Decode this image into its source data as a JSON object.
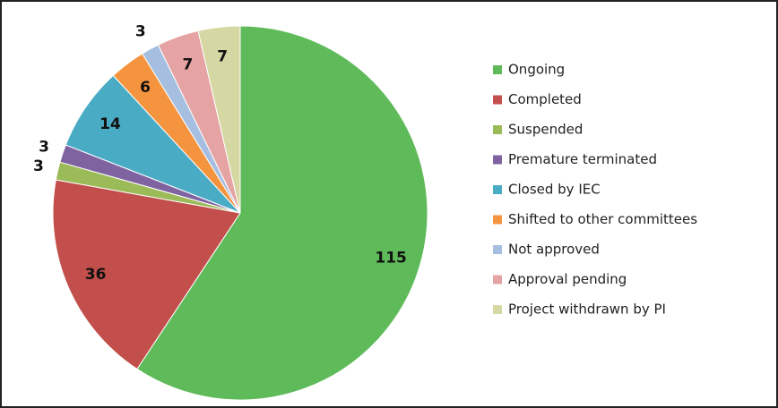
{
  "chart_data": {
    "type": "pie",
    "categories": [
      "Ongoing",
      "Completed",
      "Suspended",
      "Premature terminated",
      "Closed by IEC",
      "Shifted to other committees",
      "Not approved",
      "Approval pending",
      "Project withdrawn by PI"
    ],
    "values": [
      115,
      36,
      3,
      3,
      14,
      6,
      3,
      7,
      7
    ],
    "colors": [
      "#5fba5a",
      "#c24f4b",
      "#9bba58",
      "#7f63a1",
      "#4aabc5",
      "#f5943f",
      "#a6bfe0",
      "#e5a3a3",
      "#d6d8a4"
    ],
    "legend": "right"
  }
}
